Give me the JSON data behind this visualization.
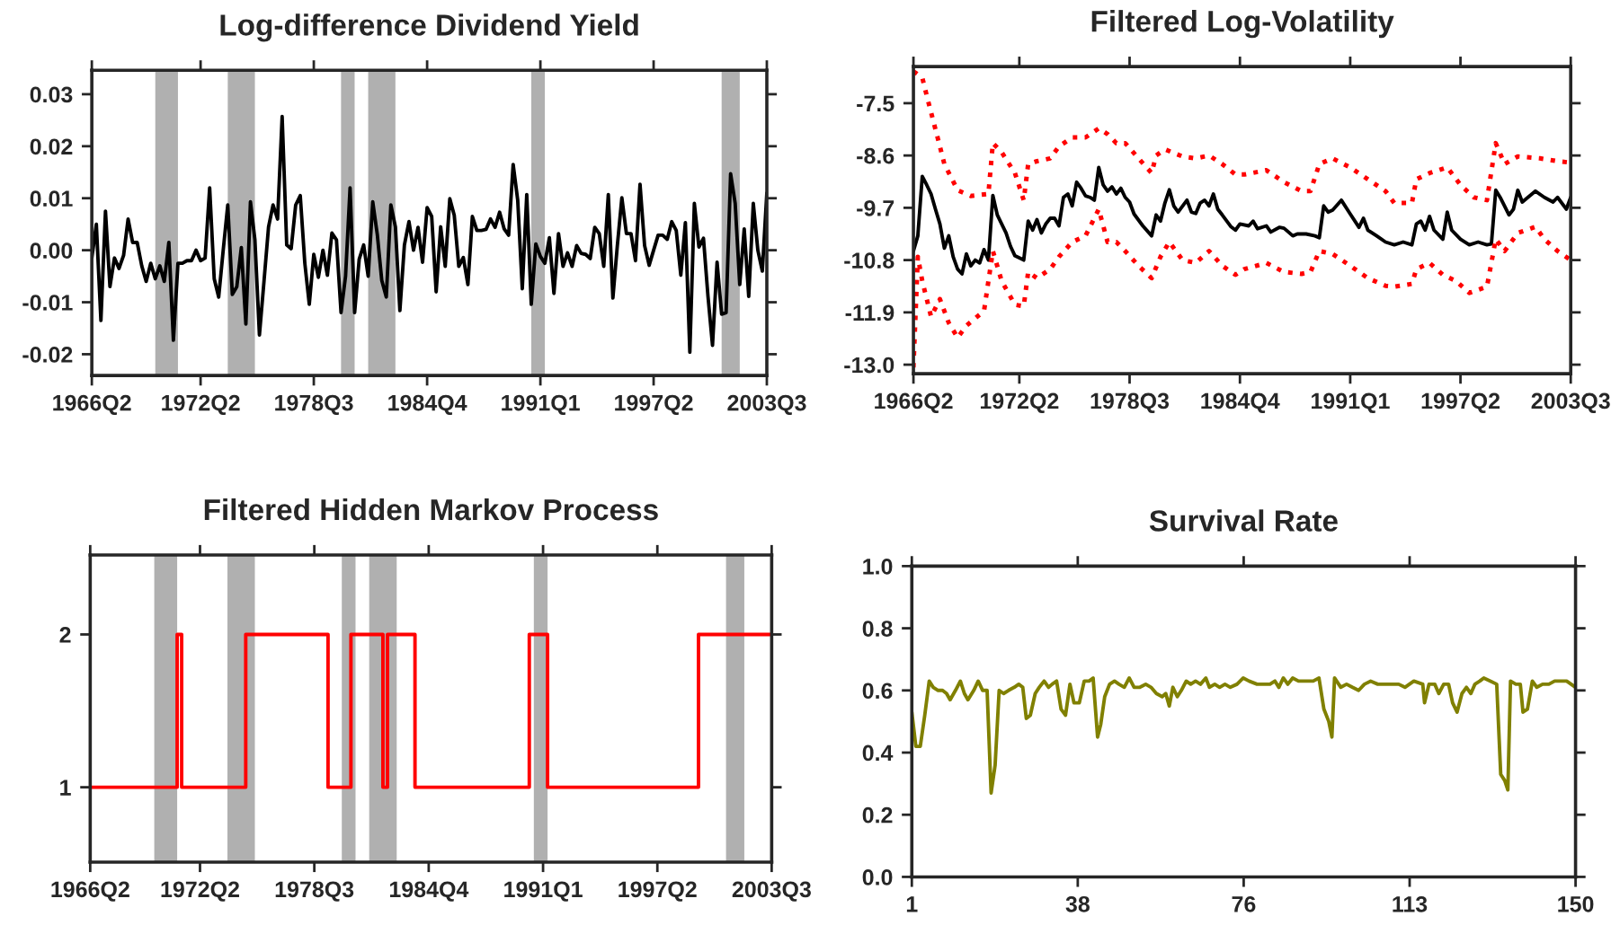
{
  "chart_data": [
    {
      "type": "line",
      "title": "Log-difference Dividend Yield",
      "color": "#000000",
      "x": [
        "1966-04",
        "1966-07",
        "1966-10",
        "1967-01",
        "1967-04",
        "1967-07",
        "1967-10",
        "1968-01",
        "1968-04",
        "1968-07",
        "1968-10",
        "1969-01",
        "1969-04",
        "1969-07",
        "1969-10",
        "1970-01",
        "1970-04",
        "1970-07",
        "1970-10",
        "1971-01",
        "1971-04",
        "1971-07",
        "1971-10",
        "1972-01",
        "1972-04",
        "1972-07",
        "1972-10",
        "1973-01",
        "1973-04",
        "1973-07",
        "1973-10",
        "1974-01",
        "1974-04",
        "1974-07",
        "1974-10",
        "1975-01",
        "1975-04",
        "1975-07",
        "1975-10",
        "1976-01",
        "1976-04",
        "1976-07",
        "1976-10",
        "1977-01",
        "1977-04",
        "1977-07",
        "1977-10",
        "1978-01",
        "1978-04",
        "1978-07",
        "1978-10",
        "1979-01",
        "1979-04",
        "1979-07",
        "1979-10",
        "1980-01",
        "1980-04",
        "1980-07",
        "1980-10",
        "1981-01",
        "1981-04",
        "1981-07",
        "1981-10",
        "1982-01",
        "1982-04",
        "1982-07",
        "1982-10",
        "1983-01",
        "1983-04",
        "1983-07",
        "1983-10",
        "1984-01",
        "1984-04",
        "1984-07",
        "1984-10",
        "1985-01",
        "1985-04",
        "1985-07",
        "1985-10",
        "1986-01",
        "1986-04",
        "1986-07",
        "1986-10",
        "1987-01",
        "1987-04",
        "1987-07",
        "1987-10",
        "1988-01",
        "1988-04",
        "1988-07",
        "1988-10",
        "1989-01",
        "1989-04",
        "1989-07",
        "1989-10",
        "1990-01",
        "1990-04",
        "1990-07",
        "1990-10",
        "1991-01",
        "1991-04",
        "1991-07",
        "1991-10",
        "1992-01",
        "1992-04",
        "1992-07",
        "1992-10",
        "1993-01",
        "1993-04",
        "1993-07",
        "1993-10",
        "1994-01",
        "1994-04",
        "1994-07",
        "1994-10",
        "1995-01",
        "1995-04",
        "1995-07",
        "1995-10",
        "1996-01",
        "1996-04",
        "1996-07",
        "1996-10",
        "1997-01",
        "1997-04",
        "1997-07",
        "1997-10",
        "1998-01",
        "1998-04",
        "1998-07",
        "1998-10",
        "1999-01",
        "1999-04",
        "1999-07",
        "1999-10",
        "2000-01",
        "2000-04",
        "2000-07",
        "2000-10",
        "2001-01",
        "2001-04",
        "2001-07",
        "2001-10",
        "2002-01",
        "2002-04",
        "2002-07",
        "2002-10",
        "2003-01",
        "2003-04",
        "2003-07"
      ],
      "values": [
        -0.0015,
        0.005,
        -0.0135,
        0.0075,
        -0.007,
        -0.0015,
        -0.0035,
        -0.001,
        0.006,
        0.0015,
        0.0015,
        -0.003,
        -0.006,
        -0.0025,
        -0.0055,
        -0.003,
        -0.006,
        0.0015,
        -0.0173,
        -0.0025,
        -0.0025,
        -0.002,
        -0.002,
        0.0,
        -0.002,
        -0.0015,
        0.012,
        -0.0055,
        -0.009,
        0.0,
        0.0087,
        -0.0085,
        -0.007,
        0.0005,
        -0.0142,
        0.0093,
        0.002,
        -0.0163,
        -0.006,
        0.0045,
        0.0087,
        0.006,
        0.0257,
        0.001,
        0.0003,
        0.0087,
        0.0105,
        -0.0025,
        -0.0104,
        -0.0008,
        -0.0052,
        0.0,
        -0.0048,
        0.0033,
        0.002,
        -0.012,
        -0.005,
        0.012,
        -0.012,
        -0.0017,
        0.001,
        -0.005,
        0.0093,
        0.003,
        -0.0058,
        -0.009,
        0.0087,
        0.0045,
        -0.0116,
        0.001,
        0.0055,
        0.0,
        0.0044,
        -0.0023,
        0.0082,
        0.0065,
        -0.008,
        0.0045,
        -0.0031,
        0.0099,
        0.0067,
        -0.0031,
        -0.0014,
        -0.0066,
        0.0065,
        0.0038,
        0.0038,
        0.004,
        0.006,
        0.0044,
        0.0073,
        0.0041,
        0.0029,
        0.0165,
        0.0096,
        -0.0074,
        0.0107,
        -0.0104,
        0.0012,
        -0.0012,
        -0.0025,
        0.0024,
        -0.0083,
        0.0032,
        -0.0031,
        -0.0005,
        -0.0031,
        0.0009,
        -0.0006,
        -0.0008,
        -0.0016,
        0.0044,
        0.0032,
        -0.0031,
        0.0107,
        -0.0092,
        0.0009,
        0.0101,
        0.0032,
        0.0032,
        -0.002,
        0.0127,
        0.0009,
        -0.0029,
        0.0,
        0.0029,
        0.0029,
        0.0021,
        0.0055,
        0.0038,
        -0.0048,
        0.0053,
        -0.0196,
        0.009,
        0.0006,
        0.0023,
        -0.0089,
        -0.0183,
        -0.0023,
        -0.0123,
        -0.012,
        0.0147,
        0.009,
        -0.0066,
        0.0041,
        -0.0089,
        0.009,
        0.0,
        -0.004,
        0.011
      ],
      "bands": [
        {
          "axis": "x",
          "from": "1969-10",
          "to": "1971-01",
          "color": "#b0b0b0"
        },
        {
          "axis": "x",
          "from": "1973-10",
          "to": "1975-04",
          "color": "#b0b0b0"
        },
        {
          "axis": "x",
          "from": "1980-01",
          "to": "1980-10",
          "color": "#b0b0b0"
        },
        {
          "axis": "x",
          "from": "1981-07",
          "to": "1983-01",
          "color": "#b0b0b0"
        },
        {
          "axis": "x",
          "from": "1990-07",
          "to": "1991-04",
          "color": "#b0b0b0"
        },
        {
          "axis": "x",
          "from": "2001-01",
          "to": "2002-01",
          "color": "#b0b0b0"
        }
      ],
      "xlim": [
        "1966-04",
        "2003-07"
      ],
      "xticks": [
        {
          "value": "1966-04",
          "label": "1966Q2"
        },
        {
          "value": "1972-04",
          "label": "1972Q2"
        },
        {
          "value": "1978-07",
          "label": "1978Q3"
        },
        {
          "value": "1984-10",
          "label": "1984Q4"
        },
        {
          "value": "1991-01",
          "label": "1991Q1"
        },
        {
          "value": "1997-04",
          "label": "1997Q2"
        },
        {
          "value": "2003-07",
          "label": "2003Q3"
        }
      ],
      "ylim": [
        -0.0241,
        0.0346
      ],
      "yticks": [
        -0.02,
        -0.01,
        {
          "value": 0,
          "label": "0.00"
        },
        0.01,
        0.02,
        0.03
      ]
    },
    {
      "type": "line",
      "title": "Filtered Log-Volatility",
      "series": [
        {
          "color": "#000000",
          "line_style": "solid",
          "x": [
            "1966-04",
            "1966-07",
            "1966-10",
            "1967-01",
            "1967-04",
            "1967-07",
            "1967-10",
            "1968-01",
            "1968-04",
            "1968-07",
            "1968-10",
            "1969-01",
            "1969-04",
            "1969-07",
            "1969-10",
            "1970-01",
            "1970-04",
            "1970-07",
            "1970-10",
            "1971-01",
            "1971-07",
            "1971-10",
            "1972-01",
            "1972-07",
            "1972-10",
            "1973-01",
            "1973-04",
            "1973-07",
            "1973-10",
            "1974-01",
            "1974-04",
            "1974-07",
            "1974-10",
            "1975-01",
            "1975-04",
            "1975-07",
            "1975-10",
            "1976-01",
            "1976-04",
            "1976-07",
            "1976-10",
            "1977-01",
            "1977-04",
            "1977-07",
            "1977-10",
            "1978-01",
            "1978-04",
            "1978-07",
            "1978-10",
            "1979-04",
            "1979-10",
            "1980-01",
            "1980-04",
            "1980-07",
            "1980-10",
            "1981-01",
            "1981-04",
            "1981-10",
            "1982-01",
            "1982-04",
            "1982-07",
            "1982-10",
            "1983-01",
            "1983-04",
            "1983-07",
            "1983-10",
            "1984-04",
            "1984-07",
            "1984-10",
            "1985-04",
            "1985-07",
            "1985-10",
            "1986-04",
            "1986-07",
            "1987-01",
            "1987-04",
            "1987-10",
            "1988-01",
            "1988-07",
            "1989-01",
            "1989-04",
            "1989-07",
            "1989-10",
            "1990-01",
            "1990-07",
            "1991-01",
            "1991-07",
            "1991-10",
            "1992-01",
            "1992-07",
            "1993-01",
            "1993-07",
            "1994-01",
            "1994-07",
            "1994-10",
            "1995-01",
            "1995-04",
            "1995-07",
            "1995-10",
            "1996-04",
            "1996-07",
            "1996-10",
            "1997-04",
            "1997-10",
            "1998-04",
            "1998-10",
            "1999-01",
            "1999-04",
            "1999-07",
            "2000-01",
            "2000-04",
            "2000-07",
            "2000-10",
            "2001-07",
            "2002-01",
            "2002-07",
            "2002-10",
            "2003-04",
            "2003-07"
          ],
          "values": [
            -10.61,
            -10.29,
            -9.04,
            -9.22,
            -9.41,
            -9.73,
            -10.04,
            -10.55,
            -10.29,
            -10.73,
            -10.99,
            -11.09,
            -10.67,
            -10.92,
            -10.8,
            -10.86,
            -10.58,
            -10.8,
            -9.44,
            -9.85,
            -10.23,
            -10.51,
            -10.71,
            -10.8,
            -9.98,
            -10.17,
            -9.95,
            -10.23,
            -10.04,
            -9.92,
            -9.92,
            -10.08,
            -9.48,
            -9.41,
            -9.66,
            -9.16,
            -9.29,
            -9.45,
            -9.48,
            -9.54,
            -8.85,
            -9.22,
            -9.35,
            -9.26,
            -9.41,
            -9.29,
            -9.48,
            -9.58,
            -9.83,
            -10.08,
            -10.29,
            -9.85,
            -9.98,
            -9.6,
            -9.32,
            -9.66,
            -9.79,
            -9.54,
            -9.79,
            -9.82,
            -9.6,
            -9.54,
            -9.66,
            -9.41,
            -9.73,
            -9.85,
            -10.1,
            -10.17,
            -10.04,
            -10.08,
            -9.98,
            -10.14,
            -10.08,
            -10.21,
            -10.11,
            -10.13,
            -10.29,
            -10.25,
            -10.25,
            -10.29,
            -10.33,
            -9.66,
            -9.79,
            -9.75,
            -9.54,
            -9.83,
            -10.11,
            -9.92,
            -10.17,
            -10.29,
            -10.42,
            -10.48,
            -10.42,
            -10.48,
            -10.04,
            -9.98,
            -10.17,
            -9.88,
            -10.17,
            -10.36,
            -9.79,
            -10.17,
            -10.36,
            -10.48,
            -10.42,
            -10.48,
            -10.46,
            -9.33,
            -9.48,
            -9.85,
            -9.73,
            -9.33,
            -9.58,
            -9.35,
            -9.48,
            -9.58,
            -9.48,
            -9.73,
            -9.48
          ]
        },
        {
          "color": "#ff0000",
          "line_style": "dotted",
          "x": [
            "1966-04",
            "1966-10",
            "1967-01",
            "1967-10",
            "1968-01",
            "1968-10",
            "1969-07",
            "1970-07",
            "1970-10",
            "1971-04",
            "1972-01",
            "1972-07",
            "1972-10",
            "1973-04",
            "1974-01",
            "1974-07",
            "1975-04",
            "1976-01",
            "1976-10",
            "1977-04",
            "1977-10",
            "1978-04",
            "1979-01",
            "1979-10",
            "1980-01",
            "1980-07",
            "1981-07",
            "1982-04",
            "1983-01",
            "1983-10",
            "1984-07",
            "1985-01",
            "1986-04",
            "1987-04",
            "1988-04",
            "1988-10",
            "1989-04",
            "1990-01",
            "1991-01",
            "1992-01",
            "1993-01",
            "1993-07",
            "1994-07",
            "1994-10",
            "1995-07",
            "1996-07",
            "1997-04",
            "1998-01",
            "1998-10",
            "1999-04",
            "1999-10",
            "2000-07",
            "2001-10",
            "2002-10",
            "2003-07"
          ],
          "values": [
            -6.83,
            -6.96,
            -7.34,
            -8.41,
            -8.78,
            -9.33,
            -9.45,
            -9.41,
            -8.34,
            -8.53,
            -8.97,
            -9.54,
            -8.78,
            -8.72,
            -8.66,
            -8.41,
            -8.22,
            -8.22,
            -8.03,
            -8.15,
            -8.34,
            -8.34,
            -8.66,
            -8.97,
            -8.6,
            -8.47,
            -8.62,
            -8.66,
            -8.6,
            -8.78,
            -9.0,
            -9.0,
            -8.91,
            -9.16,
            -9.35,
            -9.35,
            -8.78,
            -8.66,
            -8.85,
            -9.1,
            -9.35,
            -9.6,
            -9.6,
            -9.1,
            -8.97,
            -8.85,
            -9.22,
            -9.48,
            -9.54,
            -8.34,
            -8.78,
            -8.62,
            -8.66,
            -8.72,
            -8.75
          ]
        },
        {
          "color": "#ff0000",
          "line_style": "dotted",
          "x": [
            "1966-04",
            "1966-07",
            "1966-10",
            "1967-04",
            "1967-10",
            "1968-04",
            "1968-10",
            "1969-04",
            "1970-04",
            "1970-10",
            "1971-04",
            "1972-01",
            "1972-07",
            "1972-10",
            "1973-04",
            "1974-01",
            "1974-07",
            "1975-04",
            "1976-01",
            "1976-10",
            "1977-04",
            "1977-10",
            "1978-04",
            "1979-01",
            "1979-10",
            "1980-04",
            "1980-10",
            "1981-07",
            "1982-04",
            "1983-01",
            "1983-10",
            "1984-07",
            "1985-01",
            "1986-04",
            "1987-04",
            "1988-04",
            "1988-10",
            "1989-04",
            "1990-01",
            "1991-01",
            "1992-01",
            "1993-01",
            "1993-07",
            "1994-07",
            "1994-10",
            "1995-07",
            "1996-04",
            "1997-01",
            "1997-10",
            "1998-10",
            "1999-04",
            "1999-10",
            "2000-07",
            "2001-07",
            "2002-01",
            "2002-10",
            "2003-07"
          ],
          "values": [
            -13.06,
            -10.73,
            -11.24,
            -11.99,
            -11.62,
            -12.12,
            -12.43,
            -12.18,
            -11.87,
            -10.61,
            -11.24,
            -11.74,
            -11.77,
            -11.05,
            -11.18,
            -10.99,
            -10.73,
            -10.42,
            -10.29,
            -9.73,
            -10.42,
            -10.42,
            -10.61,
            -10.92,
            -11.18,
            -10.73,
            -10.42,
            -10.8,
            -10.86,
            -10.61,
            -10.92,
            -11.11,
            -10.99,
            -10.86,
            -11.05,
            -11.09,
            -11.05,
            -10.61,
            -10.67,
            -10.92,
            -11.18,
            -11.34,
            -11.36,
            -11.3,
            -10.99,
            -10.86,
            -11.11,
            -11.24,
            -11.49,
            -11.36,
            -10.36,
            -10.61,
            -10.23,
            -10.1,
            -10.36,
            -10.61,
            -10.8
          ]
        }
      ],
      "xlim": [
        "1966-04",
        "2003-07"
      ],
      "xticks": [
        {
          "value": "1966-04",
          "label": "1966Q2"
        },
        {
          "value": "1972-04",
          "label": "1972Q2"
        },
        {
          "value": "1978-07",
          "label": "1978Q3"
        },
        {
          "value": "1984-10",
          "label": "1984Q4"
        },
        {
          "value": "1991-01",
          "label": "1991Q1"
        },
        {
          "value": "1997-04",
          "label": "1997Q2"
        },
        {
          "value": "2003-07",
          "label": "2003Q3"
        }
      ],
      "ylim": [
        -13.19,
        -6.73
      ],
      "yticks": [
        {
          "value": -13,
          "label": "-13.0"
        },
        -11.9,
        -10.8,
        -9.7,
        -8.6,
        -7.5
      ]
    },
    {
      "type": "step",
      "title": "Filtered Hidden Markov Process",
      "color": "#ff0000",
      "x": [
        "1966-04",
        "1971-01",
        "1971-04",
        "1974-10",
        "1979-04",
        "1980-07",
        "1982-04",
        "1982-07",
        "1984-01",
        "1990-04",
        "1991-04",
        "1999-07",
        "2003-07"
      ],
      "values": [
        1,
        2,
        1,
        2,
        1,
        2,
        1,
        2,
        1,
        2,
        1,
        2,
        2
      ],
      "bands": [
        {
          "axis": "x",
          "from": "1969-10",
          "to": "1971-01",
          "color": "#b0b0b0"
        },
        {
          "axis": "x",
          "from": "1973-10",
          "to": "1975-04",
          "color": "#b0b0b0"
        },
        {
          "axis": "x",
          "from": "1980-01",
          "to": "1980-10",
          "color": "#b0b0b0"
        },
        {
          "axis": "x",
          "from": "1981-07",
          "to": "1983-01",
          "color": "#b0b0b0"
        },
        {
          "axis": "x",
          "from": "1990-07",
          "to": "1991-04",
          "color": "#b0b0b0"
        },
        {
          "axis": "x",
          "from": "2001-01",
          "to": "2002-01",
          "color": "#b0b0b0"
        }
      ],
      "xlim": [
        "1966-04",
        "2003-07"
      ],
      "xticks": [
        {
          "value": "1966-04",
          "label": "1966Q2"
        },
        {
          "value": "1972-04",
          "label": "1972Q2"
        },
        {
          "value": "1978-07",
          "label": "1978Q3"
        },
        {
          "value": "1984-10",
          "label": "1984Q4"
        },
        {
          "value": "1991-01",
          "label": "1991Q1"
        },
        {
          "value": "1997-04",
          "label": "1997Q2"
        },
        {
          "value": "2003-07",
          "label": "2003Q3"
        }
      ],
      "ylim": [
        0.51,
        2.52
      ],
      "yticks": [
        1,
        2
      ]
    },
    {
      "type": "line",
      "title": "Survival Rate",
      "color": "#808000",
      "x": [
        1,
        1.9,
        2.9,
        3.9,
        4.9,
        5.8,
        6.9,
        7.9,
        8.8,
        9.6,
        10.8,
        11.9,
        12.8,
        13.6,
        14.9,
        15.9,
        16.9,
        17.9,
        18.8,
        19.7,
        20.6,
        21.6,
        22.7,
        24.0,
        25.0,
        25.9,
        26.7,
        27.6,
        28.7,
        29.6,
        30.7,
        31.7,
        32.5,
        33.5,
        34.5,
        35.5,
        36.5,
        37.4,
        38.6,
        39.7,
        40.8,
        41.7,
        42.7,
        43.4,
        44.3,
        45.4,
        46.5,
        47.5,
        48.7,
        49.8,
        50.9,
        52.2,
        53.5,
        54.7,
        55.9,
        57.2,
        58.0,
        58.8,
        59.6,
        60.6,
        61.5,
        62.6,
        63.6,
        64.7,
        65.8,
        67.0,
        67.8,
        69.0,
        70.1,
        71.3,
        72.5,
        74.0,
        75.4,
        76.7,
        78.5,
        80.1,
        81.4,
        82.5,
        83.4,
        84.4,
        85.4,
        86.5,
        87.8,
        89.5,
        91.1,
        92.4,
        93.5,
        94.6,
        95.3,
        95.9,
        97.3,
        98.6,
        99.9,
        101.3,
        102.6,
        104.0,
        105.6,
        107.6,
        108.9,
        110.3,
        111.7,
        113.7,
        115.7,
        116.1,
        117.1,
        118.4,
        119.3,
        120.4,
        121.5,
        122.4,
        123.4,
        124.5,
        125.5,
        126.5,
        127.4,
        128.5,
        129.4,
        130.9,
        132.3,
        133.2,
        134.1,
        134.8,
        135.4,
        136.6,
        137.6,
        138.2,
        139.2,
        140.3,
        141.3,
        142.6,
        144.0,
        145.3,
        146.6,
        148.0,
        150.0
      ],
      "values": [
        0.53,
        0.42,
        0.42,
        0.52,
        0.63,
        0.61,
        0.6,
        0.6,
        0.59,
        0.57,
        0.6,
        0.63,
        0.59,
        0.57,
        0.6,
        0.63,
        0.6,
        0.6,
        0.27,
        0.36,
        0.6,
        0.59,
        0.6,
        0.61,
        0.62,
        0.61,
        0.51,
        0.52,
        0.59,
        0.61,
        0.63,
        0.61,
        0.62,
        0.63,
        0.54,
        0.52,
        0.62,
        0.56,
        0.56,
        0.63,
        0.63,
        0.64,
        0.45,
        0.49,
        0.58,
        0.62,
        0.63,
        0.62,
        0.61,
        0.64,
        0.61,
        0.61,
        0.62,
        0.61,
        0.59,
        0.58,
        0.59,
        0.55,
        0.61,
        0.58,
        0.6,
        0.63,
        0.62,
        0.63,
        0.62,
        0.64,
        0.61,
        0.62,
        0.61,
        0.62,
        0.61,
        0.62,
        0.64,
        0.63,
        0.62,
        0.62,
        0.62,
        0.63,
        0.61,
        0.64,
        0.62,
        0.64,
        0.63,
        0.63,
        0.63,
        0.64,
        0.54,
        0.5,
        0.45,
        0.64,
        0.61,
        0.62,
        0.61,
        0.6,
        0.62,
        0.63,
        0.62,
        0.62,
        0.62,
        0.62,
        0.61,
        0.63,
        0.62,
        0.56,
        0.62,
        0.62,
        0.59,
        0.62,
        0.62,
        0.56,
        0.53,
        0.59,
        0.61,
        0.59,
        0.62,
        0.63,
        0.64,
        0.63,
        0.62,
        0.33,
        0.31,
        0.28,
        0.63,
        0.62,
        0.62,
        0.53,
        0.54,
        0.63,
        0.61,
        0.62,
        0.62,
        0.63,
        0.63,
        0.63,
        0.61
      ],
      "xlim": [
        1,
        150
      ],
      "xticks": [
        1,
        {
          "value": 38.25,
          "label": "38"
        },
        {
          "value": 75.5,
          "label": "76"
        },
        {
          "value": 112.75,
          "label": "113"
        },
        150
      ],
      "ylim": [
        0,
        1
      ],
      "yticks": [
        {
          "value": 0,
          "label": "0.0"
        },
        0.2,
        0.4,
        0.6,
        0.8,
        {
          "value": 1,
          "label": "1.0"
        }
      ]
    }
  ]
}
